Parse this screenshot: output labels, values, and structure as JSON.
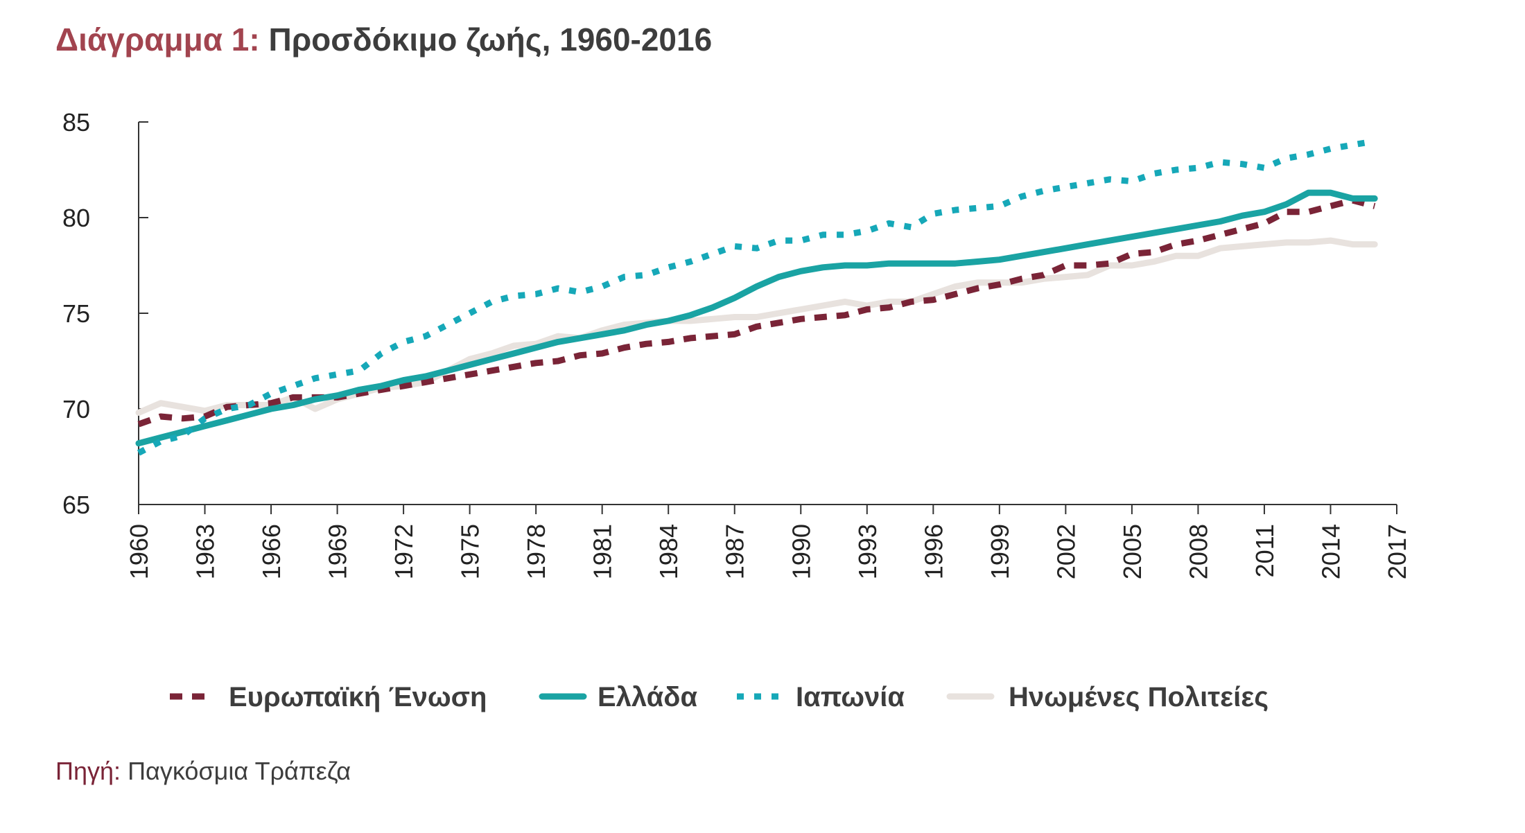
{
  "title": {
    "prefix": "Διάγραμμα 1:",
    "text": "Προσδόκιμο ζωής, 1960-2016"
  },
  "source": {
    "prefix": "Πηγή:",
    "text": "Παγκόσμια Τράπεζα"
  },
  "chart_data": {
    "type": "line",
    "xlabel": "",
    "ylabel": "",
    "xlim": [
      1960,
      2017
    ],
    "ylim": [
      65,
      85
    ],
    "x_ticks": [
      1960,
      1963,
      1966,
      1969,
      1972,
      1975,
      1978,
      1981,
      1984,
      1987,
      1990,
      1993,
      1996,
      1999,
      2002,
      2005,
      2008,
      2011,
      2014,
      2017
    ],
    "y_ticks": [
      65,
      70,
      75,
      80,
      85
    ],
    "grid": false,
    "legend_position": "bottom",
    "x": [
      1960,
      1961,
      1962,
      1963,
      1964,
      1965,
      1966,
      1967,
      1968,
      1969,
      1970,
      1971,
      1972,
      1973,
      1974,
      1975,
      1976,
      1977,
      1978,
      1979,
      1980,
      1981,
      1982,
      1983,
      1984,
      1985,
      1986,
      1987,
      1988,
      1989,
      1990,
      1991,
      1992,
      1993,
      1994,
      1995,
      1996,
      1997,
      1998,
      1999,
      2000,
      2001,
      2002,
      2003,
      2004,
      2005,
      2006,
      2007,
      2008,
      2009,
      2010,
      2011,
      2012,
      2013,
      2014,
      2015,
      2016
    ],
    "series": [
      {
        "name": "Ευρωπαϊκή Ένωση",
        "color": "#7a2437",
        "style": "dashed",
        "values": [
          69.2,
          69.6,
          69.5,
          69.6,
          70.1,
          70.2,
          70.3,
          70.6,
          70.6,
          70.6,
          70.8,
          71.0,
          71.2,
          71.4,
          71.6,
          71.8,
          72.0,
          72.2,
          72.4,
          72.5,
          72.8,
          72.9,
          73.2,
          73.4,
          73.5,
          73.7,
          73.8,
          73.9,
          74.3,
          74.5,
          74.7,
          74.8,
          74.9,
          75.2,
          75.3,
          75.6,
          75.7,
          76.0,
          76.3,
          76.5,
          76.8,
          77.0,
          77.5,
          77.5,
          77.6,
          78.1,
          78.2,
          78.6,
          78.8,
          79.1,
          79.4,
          79.7,
          80.3,
          80.3,
          80.6,
          80.9,
          80.6
        ]
      },
      {
        "name": "Ελλάδα",
        "color": "#1aa3a3",
        "style": "solid",
        "values": [
          68.2,
          68.5,
          68.8,
          69.1,
          69.4,
          69.7,
          70.0,
          70.2,
          70.5,
          70.7,
          71.0,
          71.2,
          71.5,
          71.7,
          72.0,
          72.3,
          72.6,
          72.9,
          73.2,
          73.5,
          73.7,
          73.9,
          74.1,
          74.4,
          74.6,
          74.9,
          75.3,
          75.8,
          76.4,
          76.9,
          77.2,
          77.4,
          77.5,
          77.5,
          77.6,
          77.6,
          77.6,
          77.6,
          77.7,
          77.8,
          78.0,
          78.2,
          78.4,
          78.6,
          78.8,
          79.0,
          79.2,
          79.4,
          79.6,
          79.8,
          80.1,
          80.3,
          80.7,
          81.3,
          81.3,
          81.0,
          81.0
        ]
      },
      {
        "name": "Ιαπωνία",
        "color": "#16a8b8",
        "style": "dotted",
        "values": [
          67.7,
          68.3,
          68.6,
          69.5,
          70.0,
          70.2,
          70.8,
          71.2,
          71.6,
          71.8,
          72.0,
          72.9,
          73.5,
          73.8,
          74.4,
          75.0,
          75.6,
          75.9,
          76.0,
          76.3,
          76.1,
          76.4,
          76.9,
          77.0,
          77.4,
          77.7,
          78.1,
          78.5,
          78.4,
          78.8,
          78.8,
          79.1,
          79.1,
          79.3,
          79.7,
          79.5,
          80.2,
          80.4,
          80.5,
          80.6,
          81.1,
          81.4,
          81.6,
          81.8,
          82.0,
          81.9,
          82.3,
          82.5,
          82.6,
          82.9,
          82.8,
          82.6,
          83.1,
          83.3,
          83.6,
          83.8,
          84.0
        ]
      },
      {
        "name": "Ηνωμένες Πολιτείες",
        "color": "#e8e2de",
        "style": "solid",
        "values": [
          69.8,
          70.3,
          70.1,
          69.9,
          70.2,
          70.2,
          70.2,
          70.6,
          70.0,
          70.5,
          70.8,
          71.1,
          71.2,
          71.4,
          72.0,
          72.6,
          72.9,
          73.3,
          73.4,
          73.8,
          73.7,
          74.1,
          74.4,
          74.5,
          74.6,
          74.6,
          74.7,
          74.8,
          74.8,
          75.0,
          75.2,
          75.4,
          75.6,
          75.4,
          75.6,
          75.6,
          76.0,
          76.4,
          76.6,
          76.6,
          76.6,
          76.8,
          76.9,
          77.0,
          77.5,
          77.5,
          77.7,
          78.0,
          78.0,
          78.4,
          78.5,
          78.6,
          78.7,
          78.7,
          78.8,
          78.6,
          78.6
        ]
      }
    ]
  }
}
